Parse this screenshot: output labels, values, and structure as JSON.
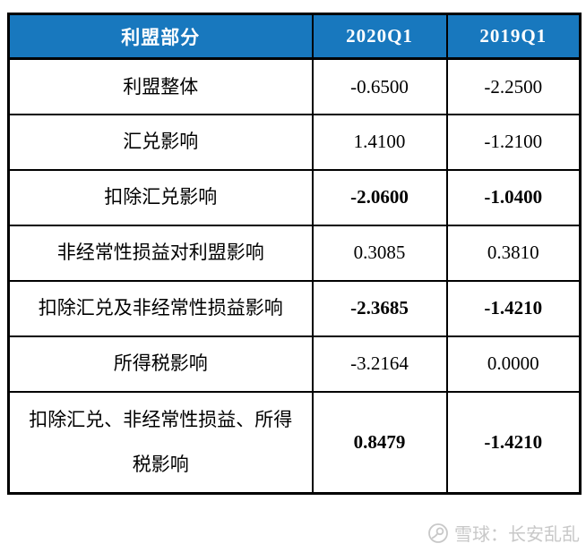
{
  "table": {
    "header": {
      "col1": "利盟部分",
      "col2": "2020Q1",
      "col3": "2019Q1"
    },
    "rows": [
      {
        "label": "利盟整体",
        "q2020": "-0.6500",
        "q2019": "-2.2500",
        "bold": false
      },
      {
        "label": "汇兑影响",
        "q2020": "1.4100",
        "q2019": "-1.2100",
        "bold": false
      },
      {
        "label": "扣除汇兑影响",
        "q2020": "-2.0600",
        "q2019": "-1.0400",
        "bold": true
      },
      {
        "label": "非经常性损益对利盟影响",
        "q2020": "0.3085",
        "q2019": "0.3810",
        "bold": false
      },
      {
        "label": "扣除汇兑及非经常性损益影响",
        "q2020": "-2.3685",
        "q2019": "-1.4210",
        "bold": true
      },
      {
        "label": "所得税影响",
        "q2020": "-3.2164",
        "q2019": "0.0000",
        "bold": false
      },
      {
        "label": "扣除汇兑、非经常性损益、所得税影响",
        "q2020": "0.8479",
        "q2019": "-1.4210",
        "bold": true
      }
    ]
  },
  "chart_data": {
    "type": "table",
    "title": "利盟部分",
    "columns": [
      "利盟部分",
      "2020Q1",
      "2019Q1"
    ],
    "rows": [
      [
        "利盟整体",
        -0.65,
        -2.25
      ],
      [
        "汇兑影响",
        1.41,
        -1.21
      ],
      [
        "扣除汇兑影响",
        -2.06,
        -1.04
      ],
      [
        "非经常性损益对利盟影响",
        0.3085,
        0.381
      ],
      [
        "扣除汇兑及非经常性损益影响",
        -2.3685,
        -1.421
      ],
      [
        "所得税影响",
        -3.2164,
        0.0
      ],
      [
        "扣除汇兑、非经常性损益、所得税影响",
        0.8479,
        -1.421
      ]
    ],
    "bold_rows": [
      2,
      4,
      6
    ],
    "legend_position": "none",
    "grid": true
  },
  "watermark": {
    "text": "雪球：长安乱乱",
    "logo": "xueqiu-snowball-icon"
  },
  "colors": {
    "header_bg": "#1878BE",
    "header_text": "#FFFFFF",
    "border": "#000000",
    "body_text": "#000000",
    "watermark": "#C8C8C8",
    "background": "#FFFFFF"
  }
}
